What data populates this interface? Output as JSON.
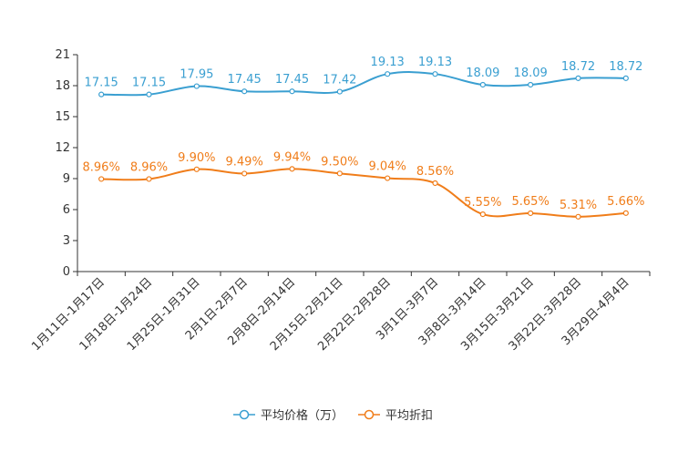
{
  "chart_data": {
    "type": "line",
    "categories": [
      "1月11日-1月17日",
      "1月18日-1月24日",
      "1月25日-1月31日",
      "2月1日-2月7日",
      "2月8日-2月14日",
      "2月15日-2月21日",
      "2月22日-2月28日",
      "3月1日-3月7日",
      "3月8日-3月14日",
      "3月15日-3月21日",
      "3月22日-3月28日",
      "3月29日-4月4日"
    ],
    "series": [
      {
        "name": "平均价格（万）",
        "color": "#3a9fd1",
        "values": [
          17.15,
          17.15,
          17.95,
          17.45,
          17.45,
          17.42,
          19.13,
          19.13,
          18.09,
          18.09,
          18.72,
          18.72
        ],
        "labels": [
          "17.15",
          "17.15",
          "17.95",
          "17.45",
          "17.45",
          "17.42",
          "19.13",
          "19.13",
          "18.09",
          "18.09",
          "18.72",
          "18.72"
        ]
      },
      {
        "name": "平均折扣",
        "color": "#f07d1a",
        "values": [
          8.96,
          8.96,
          9.9,
          9.49,
          9.94,
          9.5,
          9.04,
          8.56,
          5.55,
          5.65,
          5.31,
          5.66
        ],
        "labels": [
          "8.96%",
          "8.96%",
          "9.90%",
          "9.49%",
          "9.94%",
          "9.50%",
          "9.04%",
          "8.56%",
          "5.55%",
          "5.65%",
          "5.31%",
          "5.66%"
        ]
      }
    ],
    "ylim": [
      0,
      21
    ],
    "yticks": [
      "0",
      "3",
      "6",
      "9",
      "12",
      "15",
      "18",
      "21"
    ],
    "legend_position": "bottom"
  }
}
